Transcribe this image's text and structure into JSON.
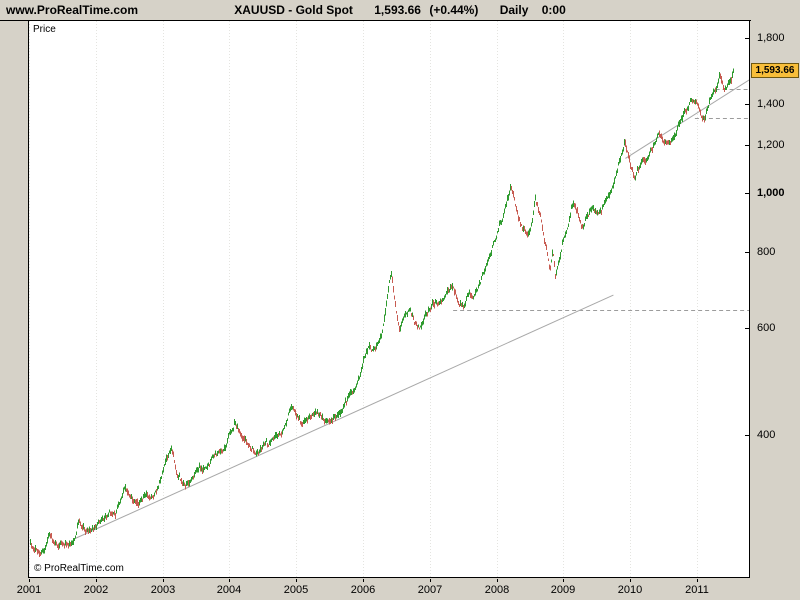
{
  "header": {
    "brand": "www.ProRealTime.com",
    "symbol": "XAUUSD - Gold Spot",
    "last_price": "1,593.66",
    "change": "(+0.44%)",
    "timeframe": "Daily",
    "session_time": "0:00"
  },
  "plot": {
    "price_axis_label": "Price",
    "copyright": "© ProRealTime.com",
    "last_price_badge": "1,593.66"
  },
  "chart_data": {
    "type": "candlestick",
    "title": "XAUUSD - Gold Spot",
    "subtitle": "Daily 0:00",
    "y_scale": "log",
    "x_range": [
      2001,
      2011.78
    ],
    "y_range": [
      233,
      1920
    ],
    "grid": "vertical-dotted",
    "x_ticks": [
      {
        "label": "2001",
        "value": 2001
      },
      {
        "label": "2002",
        "value": 2002
      },
      {
        "label": "2003",
        "value": 2003
      },
      {
        "label": "2004",
        "value": 2004
      },
      {
        "label": "2005",
        "value": 2005
      },
      {
        "label": "2006",
        "value": 2006
      },
      {
        "label": "2007",
        "value": 2007
      },
      {
        "label": "2008",
        "value": 2008
      },
      {
        "label": "2009",
        "value": 2009
      },
      {
        "label": "2010",
        "value": 2010
      },
      {
        "label": "2011",
        "value": 2011
      }
    ],
    "y_ticks": [
      {
        "label": "1,800",
        "value": 1800,
        "bold": false
      },
      {
        "label": "1,400",
        "value": 1400,
        "bold": false
      },
      {
        "label": "1,200",
        "value": 1200,
        "bold": false
      },
      {
        "label": "1,000",
        "value": 1000,
        "bold": true
      },
      {
        "label": "800",
        "value": 800,
        "bold": false
      },
      {
        "label": "600",
        "value": 600,
        "bold": false
      },
      {
        "label": "400",
        "value": 400,
        "bold": false
      }
    ],
    "last_point": {
      "year": 2011.55,
      "price": 1593.66,
      "change_pct": 0.44
    },
    "series_anchors": {
      "year": [
        2001.0,
        2001.1,
        2001.2,
        2001.3,
        2001.4,
        2001.5,
        2001.6,
        2001.7,
        2001.73,
        2001.8,
        2001.9,
        2002.0,
        2002.1,
        2002.2,
        2002.3,
        2002.42,
        2002.5,
        2002.6,
        2002.7,
        2002.8,
        2002.9,
        2003.0,
        2003.1,
        2003.13,
        2003.22,
        2003.3,
        2003.4,
        2003.5,
        2003.6,
        2003.7,
        2003.8,
        2003.9,
        2004.0,
        2004.08,
        2004.2,
        2004.3,
        2004.4,
        2004.5,
        2004.6,
        2004.7,
        2004.8,
        2004.92,
        2005.0,
        2005.08,
        2005.2,
        2005.3,
        2005.4,
        2005.5,
        2005.6,
        2005.7,
        2005.8,
        2005.9,
        2006.0,
        2006.08,
        2006.16,
        2006.25,
        2006.33,
        2006.4,
        2006.43,
        2006.5,
        2006.55,
        2006.62,
        2006.7,
        2006.78,
        2006.85,
        2006.92,
        2007.0,
        2007.08,
        2007.16,
        2007.25,
        2007.33,
        2007.42,
        2007.5,
        2007.58,
        2007.66,
        2007.75,
        2007.83,
        2007.92,
        2008.0,
        2008.08,
        2008.17,
        2008.21,
        2008.3,
        2008.38,
        2008.45,
        2008.53,
        2008.58,
        2008.65,
        2008.7,
        2008.75,
        2008.8,
        2008.84,
        2008.88,
        2008.94,
        2009.0,
        2009.08,
        2009.14,
        2009.22,
        2009.3,
        2009.38,
        2009.45,
        2009.52,
        2009.6,
        2009.68,
        2009.76,
        2009.84,
        2009.92,
        2010.0,
        2010.08,
        2010.16,
        2010.25,
        2010.33,
        2010.42,
        2010.5,
        2010.58,
        2010.66,
        2010.75,
        2010.83,
        2010.92,
        2011.0,
        2011.06,
        2011.12,
        2011.2,
        2011.28,
        2011.34,
        2011.4,
        2011.46,
        2011.51,
        2011.55
      ],
      "price": [
        266,
        262,
        256,
        270,
        264,
        268,
        270,
        276,
        290,
        278,
        278,
        282,
        292,
        298,
        302,
        325,
        318,
        310,
        312,
        315,
        322,
        348,
        372,
        382,
        342,
        330,
        332,
        348,
        352,
        362,
        378,
        388,
        408,
        425,
        400,
        388,
        382,
        395,
        392,
        402,
        418,
        448,
        432,
        420,
        428,
        432,
        422,
        428,
        432,
        440,
        462,
        478,
        520,
        552,
        545,
        562,
        622,
        700,
        715,
        625,
        585,
        618,
        648,
        615,
        598,
        622,
        640,
        658,
        648,
        662,
        678,
        660,
        652,
        668,
        678,
        722,
        762,
        800,
        862,
        912,
        968,
        1002,
        930,
        882,
        862,
        888,
        968,
        912,
        838,
        788,
        732,
        792,
        722,
        772,
        852,
        912,
        988,
        932,
        888,
        918,
        952,
        928,
        948,
        1002,
        1048,
        1122,
        1208,
        1122,
        1082,
        1112,
        1128,
        1172,
        1238,
        1198,
        1192,
        1248,
        1312,
        1372,
        1418,
        1388,
        1342,
        1322,
        1428,
        1478,
        1552,
        1498,
        1518,
        1542,
        1593.66
      ]
    },
    "trendlines": [
      {
        "x1": 2001.67,
        "p1": 269,
        "x2": 2009.75,
        "p2": 679
      },
      {
        "x1": 2009.93,
        "p1": 1140,
        "x2": 2011.78,
        "p2": 1535
      }
    ],
    "support_resistance_dashed": [
      {
        "price": 641,
        "from": 2007.35,
        "to": 2011.78
      },
      {
        "price": 1328,
        "from": 2010.97,
        "to": 2011.78
      },
      {
        "price": 1483,
        "from": 2011.28,
        "to": 2011.78
      }
    ],
    "colors": {
      "up": "#2f9b2f",
      "down": "#c75b51",
      "trendline": "#a8a8a8",
      "grid": "#e4e4e0",
      "sr_dashed": "#9c9c9c",
      "badge_bg": "#f8be3a",
      "badge_border": "#6e5710",
      "chrome_bg": "#d6d2c8",
      "plot_bg": "#ffffff"
    }
  }
}
